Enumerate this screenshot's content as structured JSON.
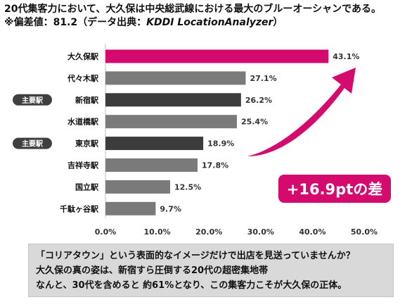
{
  "header": {
    "title": "20代集客力において、大久保は中央総武線における最大のブルーオーシャンである。",
    "subtitle_prefix": "※偏差値：81.2（データ出典：",
    "subtitle_source": "KDDI LocationAnalyzer",
    "subtitle_suffix": "）"
  },
  "colors": {
    "highlight": "#d40a6e",
    "major_station": "#3c3c3c",
    "other_station": "#7a7a7a",
    "badge": "#404040",
    "note_background": "#d9d9d9"
  },
  "chart_data": {
    "type": "bar",
    "orientation": "horizontal",
    "categories": [
      "大久保駅",
      "代々木駅",
      "新宿駅",
      "水道橋駅",
      "東京駅",
      "吉祥寺駅",
      "国立駅",
      "千駄ヶ谷駅"
    ],
    "values": [
      43.1,
      27.1,
      26.2,
      25.4,
      18.9,
      17.8,
      12.5,
      9.7
    ],
    "value_labels": [
      "43.1%",
      "27.1%",
      "26.2%",
      "25.4%",
      "18.9%",
      "17.8%",
      "12.5%",
      "9.7%"
    ],
    "bar_roles": [
      "highlight",
      "other",
      "major",
      "other",
      "major",
      "other",
      "other",
      "other"
    ],
    "xlim": [
      0,
      50
    ],
    "xticks": [
      "0.0%",
      "10.0%",
      "20.0%",
      "30.0%",
      "40.0%",
      "50.0%"
    ],
    "grid": false,
    "badges": [
      {
        "category": "新宿駅",
        "label": "主要駅"
      },
      {
        "category": "東京駅",
        "label": "主要駅"
      }
    ],
    "annotation": {
      "label": "+16.9ptの差",
      "icon": "curved-arrow-icon"
    }
  },
  "note": {
    "lines": [
      "「コリアタウン」という表面的なイメージだけで出店を見送っていませんか？",
      "大久保の真の姿は、新宿すら圧倒する20代の超密集地帯",
      "なんと、30代を含めると 約61%となり、この集客力こそが大久保の正体。"
    ]
  }
}
